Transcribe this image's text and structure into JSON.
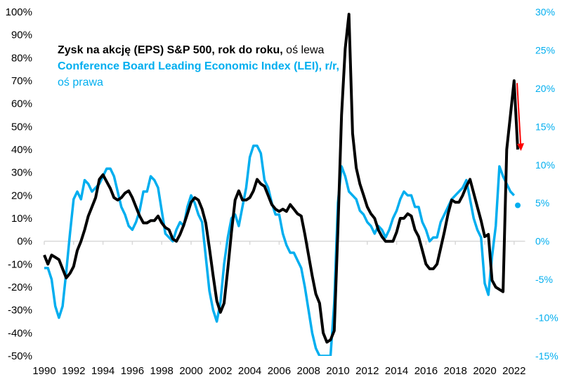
{
  "chart_data": {
    "type": "line",
    "title": "",
    "legend_position": "top-left",
    "legend": [
      {
        "bold": "Zysk na akcję (EPS) S&P 500, rok do roku,",
        "normal": " oś lewa",
        "color": "#000000",
        "series": "EPS"
      },
      {
        "bold": "Conference Board Leading Economic Index (LEI), r/r,",
        "normal": "oś prawa",
        "color": "#00aeef",
        "series": "LEI"
      }
    ],
    "x_ticks": [
      "1990",
      "1992",
      "1994",
      "1996",
      "1998",
      "2000",
      "2002",
      "2004",
      "2006",
      "2008",
      "2010",
      "2012",
      "2014",
      "2016",
      "2018",
      "2020",
      "2022"
    ],
    "x_range": [
      1990,
      2022.75
    ],
    "left_axis": {
      "ticks": [
        "100%",
        "90%",
        "80%",
        "70%",
        "60%",
        "50%",
        "40%",
        "30%",
        "20%",
        "10%",
        "0%",
        "-10%",
        "-20%",
        "-30%",
        "-40%",
        "-50%"
      ],
      "range": [
        -50,
        100
      ]
    },
    "right_axis": {
      "ticks": [
        "30%",
        "25%",
        "20%",
        "15%",
        "10%",
        "5%",
        "0%",
        "-5%",
        "-10%",
        "-15%"
      ],
      "range": [
        -15,
        30
      ],
      "color": "#00aeef"
    },
    "grid": false,
    "series": [
      {
        "name": "Zysk na akcję (EPS) S&P 500, rok do roku",
        "axis": "left",
        "color": "#000000",
        "x": [
          1990.0,
          1990.25,
          1990.5,
          1990.75,
          1991.0,
          1991.25,
          1991.5,
          1991.75,
          1992.0,
          1992.25,
          1992.5,
          1992.75,
          1993.0,
          1993.25,
          1993.5,
          1993.75,
          1994.0,
          1994.25,
          1994.5,
          1994.75,
          1995.0,
          1995.25,
          1995.5,
          1995.75,
          1996.0,
          1996.25,
          1996.5,
          1996.75,
          1997.0,
          1997.25,
          1997.5,
          1997.75,
          1998.0,
          1998.25,
          1998.5,
          1998.75,
          1999.0,
          1999.25,
          1999.5,
          1999.75,
          2000.0,
          2000.25,
          2000.5,
          2000.75,
          2001.0,
          2001.25,
          2001.5,
          2001.75,
          2002.0,
          2002.25,
          2002.5,
          2002.75,
          2003.0,
          2003.25,
          2003.5,
          2003.75,
          2004.0,
          2004.25,
          2004.5,
          2004.75,
          2005.0,
          2005.25,
          2005.5,
          2005.75,
          2006.0,
          2006.25,
          2006.5,
          2006.75,
          2007.0,
          2007.25,
          2007.5,
          2007.75,
          2008.0,
          2008.25,
          2008.5,
          2008.75,
          2009.0,
          2009.25,
          2009.5,
          2009.75,
          2010.0,
          2010.25,
          2010.5,
          2010.75,
          2011.0,
          2011.25,
          2011.5,
          2011.75,
          2012.0,
          2012.25,
          2012.5,
          2012.75,
          2013.0,
          2013.25,
          2013.5,
          2013.75,
          2014.0,
          2014.25,
          2014.5,
          2014.75,
          2015.0,
          2015.25,
          2015.5,
          2015.75,
          2016.0,
          2016.25,
          2016.5,
          2016.75,
          2017.0,
          2017.25,
          2017.5,
          2017.75,
          2018.0,
          2018.25,
          2018.5,
          2018.75,
          2019.0,
          2019.25,
          2019.5,
          2019.75,
          2020.0,
          2020.25,
          2020.5,
          2020.75,
          2021.0,
          2021.25,
          2021.5,
          2021.75,
          2022.0,
          2022.25
        ],
        "values": [
          -6,
          -10,
          -6,
          -7,
          -8,
          -12,
          -16,
          -14,
          -11,
          -4,
          0,
          5,
          11,
          15,
          19,
          27,
          29,
          26,
          23,
          19,
          18,
          19,
          21,
          22,
          19,
          15,
          11,
          8,
          8,
          9,
          9,
          11,
          8,
          6,
          5,
          1,
          0,
          3,
          7,
          12,
          17,
          19,
          18,
          14,
          8,
          -3,
          -15,
          -26,
          -31,
          -27,
          -12,
          4,
          18,
          22,
          18,
          18,
          19,
          22,
          27,
          25,
          24,
          20,
          16,
          14,
          13,
          14,
          13,
          16,
          14,
          12,
          11,
          3,
          -6,
          -15,
          -23,
          -27,
          -40,
          -44,
          -43,
          -39,
          5,
          55,
          84,
          99,
          47,
          32,
          25,
          20,
          15,
          12,
          10,
          5,
          2,
          0,
          0,
          0,
          4,
          10,
          10,
          12,
          11,
          5,
          2,
          -4,
          -10,
          -12,
          -12,
          -10,
          -3,
          4,
          12,
          18,
          17,
          17,
          20,
          24,
          27,
          21,
          15,
          9,
          2,
          3,
          -17,
          -20,
          -21,
          -22,
          40,
          55,
          70,
          40
        ]
      },
      {
        "name": "Conference Board Leading Economic Index (LEI), r/r",
        "axis": "right",
        "color": "#00aeef",
        "x": [
          1990.0,
          1990.25,
          1990.5,
          1990.75,
          1991.0,
          1991.25,
          1991.5,
          1991.75,
          1992.0,
          1992.25,
          1992.5,
          1992.75,
          1993.0,
          1993.25,
          1993.5,
          1993.75,
          1994.0,
          1994.25,
          1994.5,
          1994.75,
          1995.0,
          1995.25,
          1995.5,
          1995.75,
          1996.0,
          1996.25,
          1996.5,
          1996.75,
          1997.0,
          1997.25,
          1997.5,
          1997.75,
          1998.0,
          1998.25,
          1998.5,
          1998.75,
          1999.0,
          1999.25,
          1999.5,
          1999.75,
          2000.0,
          2000.25,
          2000.5,
          2000.75,
          2001.0,
          2001.25,
          2001.5,
          2001.75,
          2002.0,
          2002.25,
          2002.5,
          2002.75,
          2003.0,
          2003.25,
          2003.5,
          2003.75,
          2004.0,
          2004.25,
          2004.5,
          2004.75,
          2005.0,
          2005.25,
          2005.5,
          2005.75,
          2006.0,
          2006.25,
          2006.5,
          2006.75,
          2007.0,
          2007.25,
          2007.5,
          2007.75,
          2008.0,
          2008.25,
          2008.5,
          2008.75,
          2009.25,
          2009.5,
          2009.75,
          2010.0,
          2010.25,
          2010.5,
          2010.75,
          2011.0,
          2011.25,
          2011.5,
          2011.75,
          2012.0,
          2012.25,
          2012.5,
          2012.75,
          2013.0,
          2013.25,
          2013.5,
          2013.75,
          2014.0,
          2014.25,
          2014.5,
          2014.75,
          2015.0,
          2015.25,
          2015.5,
          2015.75,
          2016.0,
          2016.25,
          2016.5,
          2016.75,
          2017.0,
          2017.25,
          2017.5,
          2017.75,
          2018.0,
          2018.25,
          2018.5,
          2018.75,
          2019.0,
          2019.25,
          2019.5,
          2019.75,
          2020.0,
          2020.25,
          2020.5,
          2020.75,
          2021.0,
          2021.25,
          2021.5,
          2021.75,
          2022.0
        ],
        "values": [
          -3.5,
          -3.5,
          -5,
          -8.5,
          -10,
          -8.5,
          -4,
          1,
          5.5,
          6.5,
          5.5,
          8,
          7.5,
          6.5,
          7,
          7.5,
          8.5,
          9.5,
          9.5,
          8.5,
          6.5,
          4.5,
          3.5,
          2,
          1.5,
          2.5,
          4,
          6.5,
          6.5,
          8.5,
          8,
          7,
          4,
          1,
          0.5,
          0,
          1.5,
          2.5,
          2,
          4.5,
          6,
          5,
          3.5,
          2.5,
          -2,
          -6.5,
          -9,
          -10.5,
          -8,
          -3,
          0.5,
          3,
          3.5,
          2,
          4.5,
          7,
          11,
          12.5,
          12.5,
          11.5,
          8,
          7,
          5,
          3.5,
          3.5,
          1,
          -0.5,
          -1.5,
          -1.5,
          -2.5,
          -3.5,
          -6,
          -9,
          -12,
          -14,
          -15,
          -15,
          -15,
          -8,
          5,
          9.8,
          8.5,
          6.5,
          6,
          5.5,
          4,
          3.5,
          2.5,
          2,
          1,
          2,
          1.5,
          0.5,
          1.5,
          3,
          4,
          5.5,
          6.5,
          6,
          6,
          4.5,
          4.5,
          2.5,
          1.5,
          0,
          0.5,
          0.5,
          2.5,
          3.5,
          4.5,
          5.5,
          6,
          6.5,
          7,
          8,
          5.5,
          3,
          1.5,
          0.5,
          -5.5,
          -7,
          -2,
          2,
          9.8,
          8.5,
          7.5,
          6.5,
          6.0
        ]
      },
      {
        "name": "LEI latest point",
        "axis": "right",
        "color": "#00aeef",
        "marker": "dot",
        "x": [
          2022.25
        ],
        "values": [
          4.7
        ]
      }
    ],
    "annotations": [
      {
        "type": "arrow",
        "color": "#ff0000",
        "direction": "down",
        "from_left_value": 69,
        "to_left_value": 40,
        "x": 2022.3
      }
    ]
  }
}
